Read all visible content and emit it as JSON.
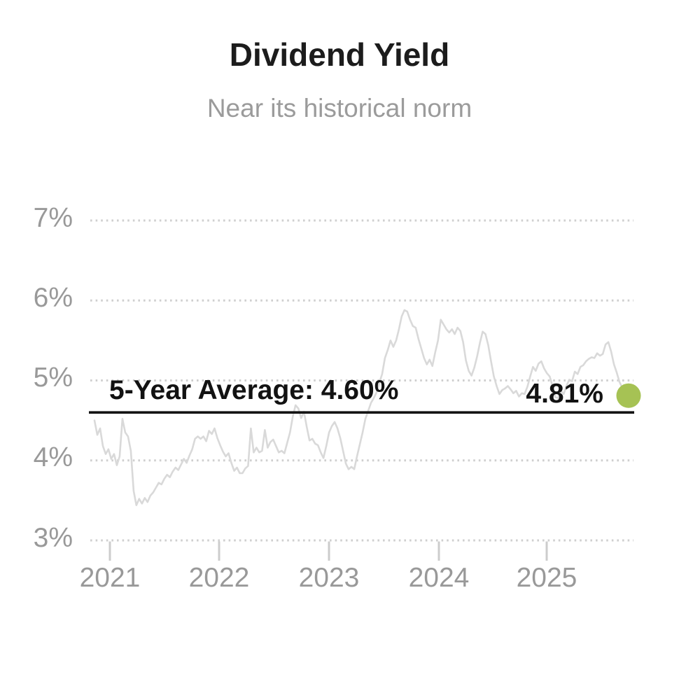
{
  "chart_data": {
    "type": "line",
    "title": "Dividend Yield",
    "subtitle": "Near its historical norm",
    "y_axis": {
      "tick_labels": [
        "7%",
        "6%",
        "5%",
        "4%",
        "3%"
      ],
      "tick_values": [
        7,
        6,
        5,
        4,
        3
      ],
      "unit": "%",
      "labeled_range": [
        3,
        7
      ],
      "gridlines": "dotted"
    },
    "x_axis": {
      "tick_labels": [
        "2021",
        "2022",
        "2023",
        "2024",
        "2025"
      ],
      "tick_values": [
        2021,
        2022,
        2023,
        2024,
        2025
      ]
    },
    "average_line": {
      "label": "5-Year Average: 4.60%",
      "value": 4.6
    },
    "latest": {
      "label": "4.81%",
      "value": 4.81,
      "marker": "dot"
    },
    "legend": "none",
    "series": [
      {
        "name": "Dividend Yield",
        "unit": "%",
        "approx_x_start": "2020-11",
        "approx_x_end": "2025-10",
        "values": [
          4.5,
          4.32,
          4.4,
          4.18,
          4.08,
          4.14,
          4.02,
          4.08,
          3.94,
          4.05,
          4.52,
          4.35,
          4.3,
          4.12,
          3.62,
          3.44,
          3.52,
          3.46,
          3.53,
          3.48,
          3.56,
          3.6,
          3.66,
          3.72,
          3.7,
          3.77,
          3.82,
          3.79,
          3.86,
          3.91,
          3.88,
          3.95,
          4.02,
          3.97,
          4.06,
          4.14,
          4.27,
          4.3,
          4.27,
          4.3,
          4.24,
          4.37,
          4.33,
          4.4,
          4.28,
          4.19,
          4.11,
          4.05,
          4.09,
          3.97,
          3.87,
          3.91,
          3.84,
          3.84,
          3.9,
          3.93,
          4.4,
          4.1,
          4.16,
          4.1,
          4.12,
          4.38,
          4.16,
          4.23,
          4.26,
          4.18,
          4.1,
          4.12,
          4.09,
          4.22,
          4.35,
          4.55,
          4.69,
          4.65,
          4.53,
          4.61,
          4.42,
          4.25,
          4.27,
          4.21,
          4.19,
          4.1,
          4.03,
          4.18,
          4.35,
          4.43,
          4.48,
          4.4,
          4.28,
          4.12,
          3.96,
          3.89,
          3.92,
          3.89,
          4.05,
          4.2,
          4.35,
          4.52,
          4.62,
          4.72,
          4.78,
          4.85,
          4.97,
          5.08,
          5.28,
          5.38,
          5.5,
          5.42,
          5.5,
          5.64,
          5.8,
          5.88,
          5.86,
          5.76,
          5.68,
          5.66,
          5.52,
          5.4,
          5.28,
          5.2,
          5.26,
          5.18,
          5.35,
          5.5,
          5.76,
          5.7,
          5.64,
          5.6,
          5.64,
          5.58,
          5.66,
          5.62,
          5.48,
          5.25,
          5.12,
          5.06,
          5.16,
          5.3,
          5.47,
          5.61,
          5.58,
          5.44,
          5.24,
          5.05,
          4.93,
          4.83,
          4.88,
          4.9,
          4.93,
          4.89,
          4.84,
          4.87,
          4.8,
          4.84,
          4.83,
          4.92,
          5.05,
          5.17,
          5.12,
          5.21,
          5.24,
          5.15,
          5.09,
          5.05,
          4.93,
          4.79,
          4.78,
          4.87,
          4.83,
          4.93,
          5.01,
          4.99,
          5.11,
          5.08,
          5.17,
          5.19,
          5.24,
          5.27,
          5.29,
          5.28,
          5.34,
          5.31,
          5.33,
          5.45,
          5.48,
          5.36,
          5.2,
          5.1,
          4.98,
          4.91,
          4.84,
          4.81
        ]
      }
    ],
    "colors": {
      "series_line": "#d9d9d9",
      "average_line": "#141414",
      "latest_dot": "#a6c254",
      "grid": "#cfcfcf",
      "tick": "#cccccc",
      "axis_label": "#999999",
      "title": "#1c1c1c",
      "subtitle": "#9b9b9b",
      "background": "#ffffff"
    }
  }
}
